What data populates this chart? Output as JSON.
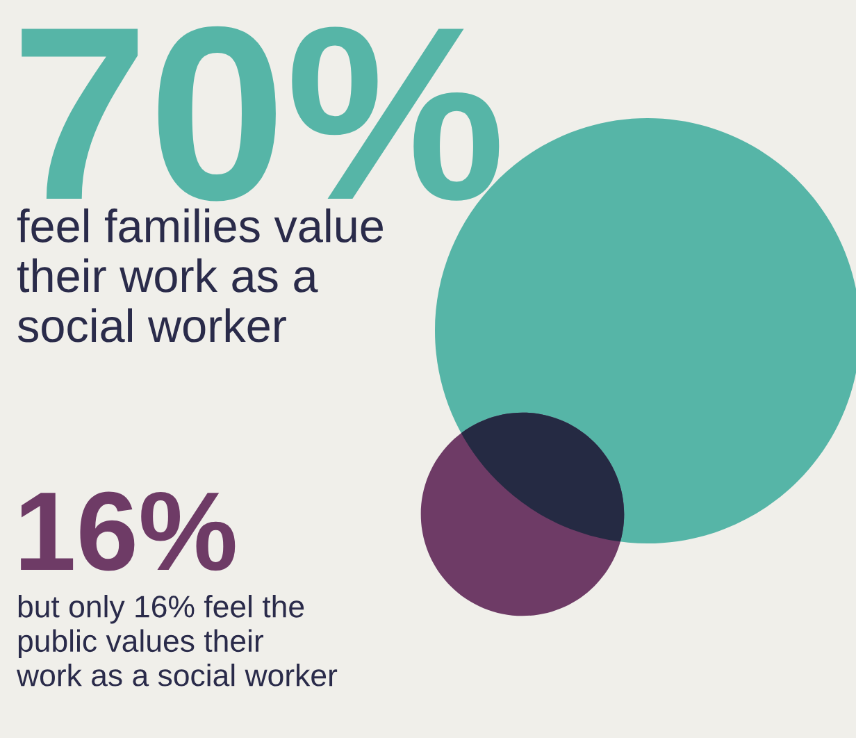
{
  "chart_data": {
    "type": "other",
    "categories": [
      null,
      null
    ],
    "values": [
      70,
      16
    ],
    "value_labels": [
      "70%",
      "16%"
    ],
    "colors": [
      "#56b5a7",
      "#6e3b66"
    ],
    "annotations": [
      "feel families value\ntheir work as a\nsocial worker",
      "but only 16% feel the\npublic values their\nwork as a social worker"
    ]
  }
}
